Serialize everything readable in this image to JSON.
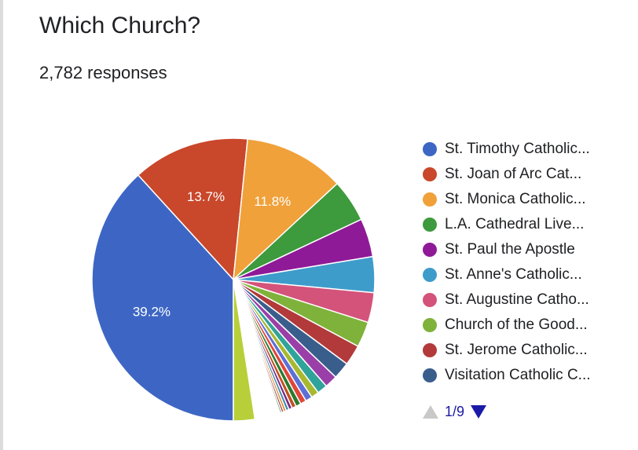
{
  "title": "Which Church?",
  "subtitle": "2,782 responses",
  "pager": {
    "text": "1/9"
  },
  "chart_data": {
    "type": "pie",
    "start_angle_deg": 90,
    "slices": [
      {
        "label": "St. Timothy Catholic...",
        "value": 39.2,
        "color": "#3d66c4",
        "data_label": "39.2%"
      },
      {
        "label": "St. Joan of Arc Cat...",
        "value": 13.7,
        "color": "#c9472b",
        "data_label": "13.7%"
      },
      {
        "label": "St. Monica Catholic...",
        "value": 11.8,
        "color": "#f0a13a",
        "data_label": "11.8%"
      },
      {
        "label": "L.A. Cathedral Live...",
        "value": 5.0,
        "color": "#3d9a3d",
        "data_label": ""
      },
      {
        "label": "St. Paul the Apostle",
        "value": 4.5,
        "color": "#8f1a97",
        "data_label": ""
      },
      {
        "label": "St. Anne's Catholic...",
        "value": 4.2,
        "color": "#3e9ccb",
        "data_label": ""
      },
      {
        "label": "St. Augustine Catho...",
        "value": 3.5,
        "color": "#d4537a",
        "data_label": ""
      },
      {
        "label": "Church of the Good...",
        "value": 3.0,
        "color": "#7fb23a",
        "data_label": ""
      },
      {
        "label": "St. Jerome Catholic...",
        "value": 2.4,
        "color": "#b23a3a",
        "data_label": ""
      },
      {
        "label": "Visitation Catholic C...",
        "value": 2.0,
        "color": "#3a5e8c",
        "data_label": ""
      },
      {
        "value": 1.5,
        "color": "#9a3fa8"
      },
      {
        "value": 1.2,
        "color": "#30a39a"
      },
      {
        "value": 0.9,
        "color": "#a8b830"
      },
      {
        "value": 0.8,
        "color": "#5e6fd6"
      },
      {
        "value": 0.7,
        "color": "#e0473a"
      },
      {
        "value": 0.6,
        "color": "#2e7a2e"
      },
      {
        "value": 0.5,
        "color": "#c05020"
      },
      {
        "value": 0.4,
        "color": "#7a2a80"
      },
      {
        "value": 0.35,
        "color": "#3a8ab0"
      },
      {
        "value": 0.3,
        "color": "#e08a30"
      },
      {
        "value": 0.25,
        "color": "#9a3030"
      },
      {
        "value": 0.2,
        "color": "#4a7a4a"
      },
      {
        "value": 3.0,
        "color": "#ffffff"
      },
      {
        "value": 2.5,
        "color": "#b8cf3a"
      }
    ]
  }
}
